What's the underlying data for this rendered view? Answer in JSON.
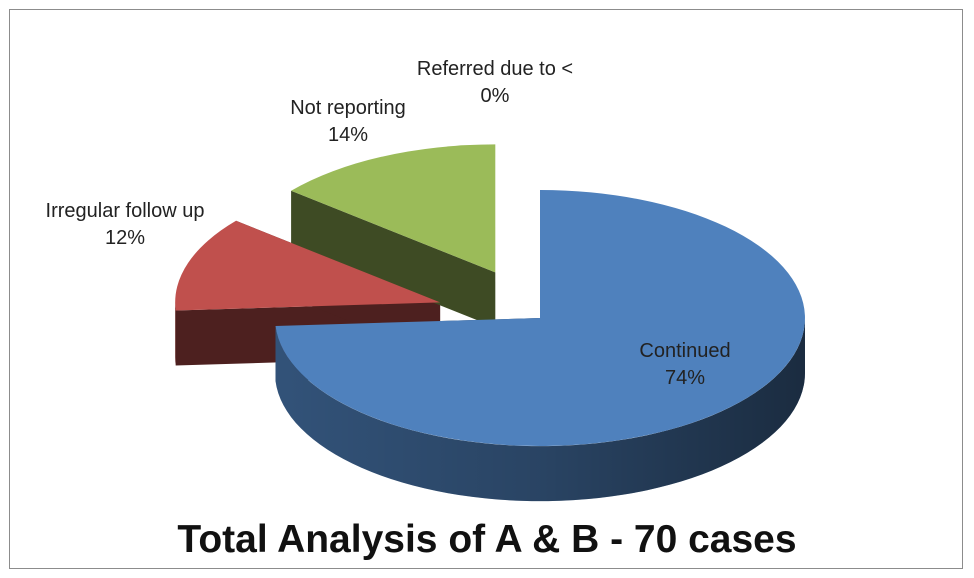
{
  "chart_data": {
    "type": "pie",
    "title": "Total Analysis of A & B - 70 cases",
    "categories": [
      "Continued",
      "Irregular follow up",
      "Not reporting",
      "Referred due to <"
    ],
    "values": [
      74,
      12,
      14,
      0
    ],
    "value_labels": [
      "74%",
      "12%",
      "14%",
      "0%"
    ],
    "colors": [
      "#4f81bd",
      "#c0504d",
      "#9bbb59",
      "#8064a2"
    ]
  }
}
